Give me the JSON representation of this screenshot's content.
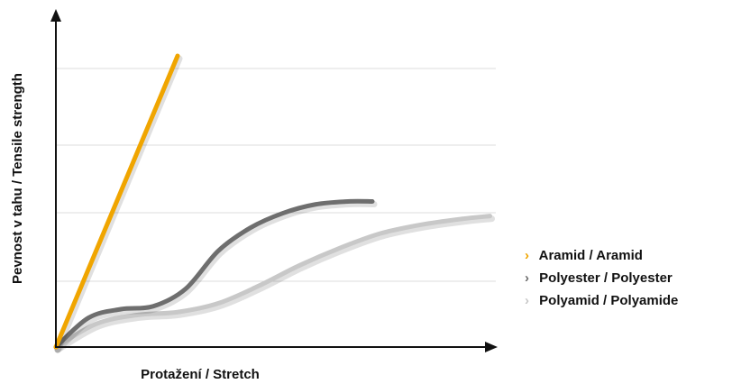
{
  "chart_data": {
    "type": "line",
    "xlabel": "Protažení / Stretch",
    "ylabel": "Pevnost v tahu / Tensile strength",
    "grid": true,
    "legend_position": "right",
    "series": [
      {
        "name": "Aramid / Aramid",
        "color": "#F0A500",
        "points": [
          [
            0,
            0
          ],
          [
            0.15,
            1.0
          ]
        ]
      },
      {
        "name": "Polyester / Polyester",
        "color": "#6E6E6E",
        "points": [
          [
            0,
            0
          ],
          [
            0.04,
            0.1
          ],
          [
            0.08,
            0.13
          ],
          [
            0.12,
            0.14
          ],
          [
            0.16,
            0.2
          ],
          [
            0.2,
            0.33
          ],
          [
            0.24,
            0.41
          ],
          [
            0.28,
            0.46
          ],
          [
            0.32,
            0.49
          ],
          [
            0.36,
            0.5
          ],
          [
            0.39,
            0.5
          ]
        ]
      },
      {
        "name": "Polyamid / Polyamide",
        "color": "#C8C8C8",
        "points": [
          [
            0,
            0
          ],
          [
            0.05,
            0.08
          ],
          [
            0.1,
            0.11
          ],
          [
            0.15,
            0.12
          ],
          [
            0.2,
            0.15
          ],
          [
            0.25,
            0.21
          ],
          [
            0.3,
            0.28
          ],
          [
            0.35,
            0.34
          ],
          [
            0.4,
            0.39
          ],
          [
            0.45,
            0.42
          ],
          [
            0.5,
            0.44
          ],
          [
            0.535,
            0.45
          ]
        ]
      }
    ]
  }
}
